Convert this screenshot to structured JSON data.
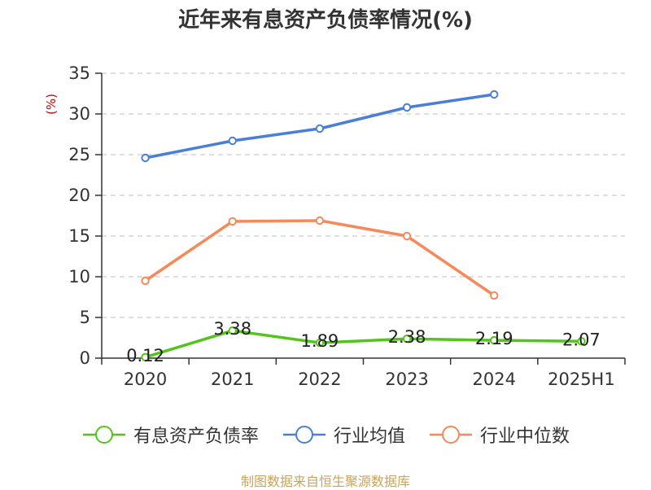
{
  "title": "近年来有息资产负债率情况(%)",
  "source": "制图数据来自恒生聚源数据库",
  "colors": {
    "series": [
      "#52c41a",
      "#4a7fd8",
      "#f5895a"
    ],
    "grid": "#cccccc",
    "axis": "#333333",
    "ylabel": "#cc0000"
  },
  "chart_data": {
    "type": "line",
    "categories": [
      "2020",
      "2021",
      "2022",
      "2023",
      "2024",
      "2025H1"
    ],
    "ylabel": "(%)",
    "ylim": [
      0,
      35
    ],
    "yticks": [
      "0",
      "5",
      "10",
      "15",
      "20",
      "25",
      "30",
      "35"
    ],
    "grid": "horizontal dashed",
    "legend_position": "bottom",
    "series": [
      {
        "name": "有息资产负债率",
        "values": [
          0.12,
          3.38,
          1.89,
          2.38,
          2.19,
          2.07
        ],
        "labels": [
          "0.12",
          "3.38",
          "1.89",
          "2.38",
          "2.19",
          "2.07"
        ]
      },
      {
        "name": "行业均值",
        "values": [
          24.6,
          26.7,
          28.2,
          30.8,
          32.4,
          null
        ]
      },
      {
        "name": "行业中位数",
        "values": [
          9.5,
          16.8,
          16.9,
          15.0,
          7.7,
          null
        ]
      }
    ]
  }
}
